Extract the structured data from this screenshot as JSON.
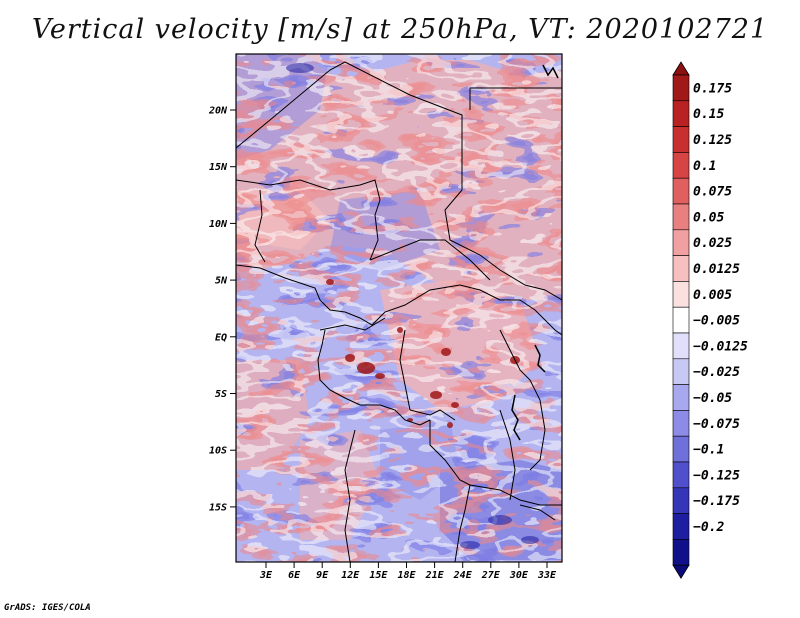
{
  "title": "Vertical velocity [m/s] at 250hPa, VT: 2020102721",
  "footer": "GrADS: IGES/COLA",
  "map": {
    "lat_labels": [
      "20N",
      "15N",
      "10N",
      "5N",
      "EQ",
      "5S",
      "10S",
      "15S"
    ],
    "lon_labels": [
      "3E",
      "6E",
      "9E",
      "12E",
      "15E",
      "18E",
      "21E",
      "24E",
      "27E",
      "30E",
      "33E"
    ]
  },
  "colorbar": {
    "labels": [
      "0.175",
      "0.15",
      "0.125",
      "0.1",
      "0.075",
      "0.05",
      "0.025",
      "0.0125",
      "0.005",
      "−0.005",
      "−0.0125",
      "−0.025",
      "−0.05",
      "−0.075",
      "−0.1",
      "−0.125",
      "−0.175",
      "−0.2"
    ],
    "colors": [
      "#a01818",
      "#b82222",
      "#c83030",
      "#d64444",
      "#e06060",
      "#e88080",
      "#f0a0a0",
      "#f6c0c0",
      "#fbe0e0",
      "#ffffff",
      "#e0e0fa",
      "#c8c8f4",
      "#a8a8ee",
      "#8c8ce6",
      "#7070da",
      "#5050cc",
      "#3535b8",
      "#1e1ea0",
      "#10108a"
    ],
    "top_color": "#8c1010",
    "bottom_color": "#0a0a78"
  }
}
